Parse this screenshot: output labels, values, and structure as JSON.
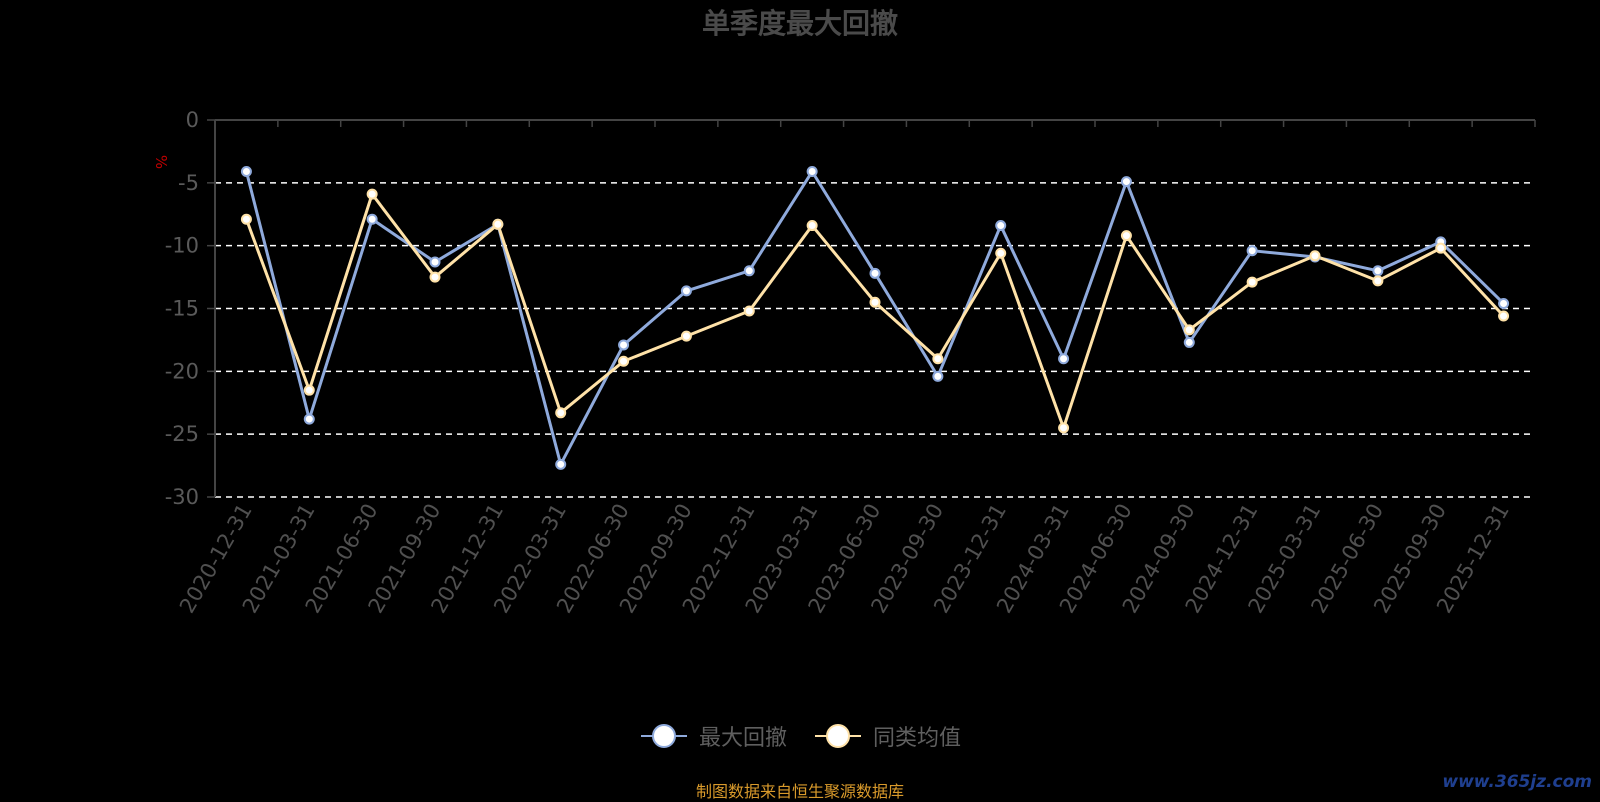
{
  "chart_data": {
    "type": "line",
    "title": "单季度最大回撤",
    "ylabel": "%",
    "ylim": [
      -30,
      0
    ],
    "yticks": [
      0,
      -5,
      -10,
      -15,
      -20,
      -25,
      -30
    ],
    "grid": true,
    "legend_position": "bottom",
    "categories": [
      "2020-12-31",
      "2021-03-31",
      "2021-06-30",
      "2021-09-30",
      "2021-12-31",
      "2022-03-31",
      "2022-06-30",
      "2022-09-30",
      "2022-12-31",
      "2023-03-31",
      "2023-06-30",
      "2023-09-30",
      "2023-12-31",
      "2024-03-31",
      "2024-06-30",
      "2024-09-30",
      "2024-12-31",
      "2025-03-31",
      "2025-06-30",
      "2025-09-30",
      "2025-12-31"
    ],
    "series": [
      {
        "name": "最大回撤",
        "color": "#8faadc",
        "values": [
          -4.1,
          -23.8,
          -7.9,
          -11.3,
          -8.3,
          -27.4,
          -17.9,
          -13.6,
          -12.0,
          -4.1,
          -12.2,
          -20.4,
          -8.4,
          -19.0,
          -4.9,
          -17.7,
          -10.4,
          -10.9,
          -12.0,
          -9.7,
          -14.6
        ]
      },
      {
        "name": "同类均值",
        "color": "#ffe2a8",
        "values": [
          -7.9,
          -21.5,
          -5.9,
          -12.5,
          -8.3,
          -23.3,
          -19.2,
          -17.2,
          -15.2,
          -8.4,
          -14.5,
          -19.0,
          -10.6,
          -24.5,
          -9.2,
          -16.7,
          -12.9,
          -10.8,
          -12.8,
          -10.2,
          -15.6
        ]
      }
    ]
  },
  "source_note": "制图数据来自恒生聚源数据库",
  "watermark": "www.365jz.com"
}
